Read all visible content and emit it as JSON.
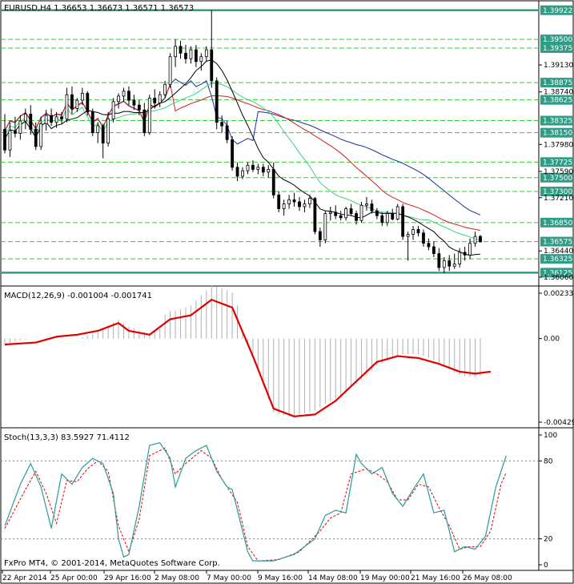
{
  "chart_data": [
    {
      "type": "candlestick",
      "title": "EURUSD,H4  1.36653  1.36673  1.36571  1.36573",
      "ylim": [
        1.35979,
        1.40035
      ],
      "y_ticks": [
        "1.39130",
        "1.38740",
        "1.37980",
        "1.37590",
        "1.37210",
        "1.36440",
        "1.36060"
      ],
      "level_labels": [
        "1.39922",
        "1.39500",
        "1.39375",
        "1.38875",
        "1.38625",
        "1.38325",
        "1.38150",
        "1.37725",
        "1.37500",
        "1.37300",
        "1.36850",
        "1.36575",
        "1.36325",
        "1.36125"
      ],
      "highlighted_levels": [
        "1.39922",
        "1.36125"
      ],
      "colors": {
        "ma_black": "#000000",
        "ma_green": "#3cd17c",
        "ma_red": "#d22020",
        "ma_blue": "#1c2fa6",
        "level_line": "#33cc33",
        "tag_bg": "#2f9c86"
      },
      "ohlc": [
        {
          "o": 1.382,
          "h": 1.3842,
          "l": 1.3785,
          "c": 1.379
        },
        {
          "o": 1.379,
          "h": 1.383,
          "l": 1.378,
          "c": 1.3818
        },
        {
          "o": 1.3818,
          "h": 1.3838,
          "l": 1.3808,
          "c": 1.3814
        },
        {
          "o": 1.3814,
          "h": 1.384,
          "l": 1.3805,
          "c": 1.3832
        },
        {
          "o": 1.3832,
          "h": 1.385,
          "l": 1.382,
          "c": 1.3842
        },
        {
          "o": 1.3842,
          "h": 1.3855,
          "l": 1.3812,
          "c": 1.382
        },
        {
          "o": 1.382,
          "h": 1.383,
          "l": 1.379,
          "c": 1.3795
        },
        {
          "o": 1.3795,
          "h": 1.3838,
          "l": 1.379,
          "c": 1.3828
        },
        {
          "o": 1.3828,
          "h": 1.3848,
          "l": 1.3818,
          "c": 1.384
        },
        {
          "o": 1.384,
          "h": 1.385,
          "l": 1.3825,
          "c": 1.383
        },
        {
          "o": 1.383,
          "h": 1.3845,
          "l": 1.3822,
          "c": 1.3838
        },
        {
          "o": 1.3838,
          "h": 1.3845,
          "l": 1.3828,
          "c": 1.3835
        },
        {
          "o": 1.3835,
          "h": 1.388,
          "l": 1.383,
          "c": 1.387
        },
        {
          "o": 1.387,
          "h": 1.3882,
          "l": 1.3842,
          "c": 1.385
        },
        {
          "o": 1.385,
          "h": 1.3865,
          "l": 1.3845,
          "c": 1.3862
        },
        {
          "o": 1.3862,
          "h": 1.388,
          "l": 1.3855,
          "c": 1.3872
        },
        {
          "o": 1.3872,
          "h": 1.3875,
          "l": 1.384,
          "c": 1.3845
        },
        {
          "o": 1.3845,
          "h": 1.385,
          "l": 1.381,
          "c": 1.3815
        },
        {
          "o": 1.3815,
          "h": 1.383,
          "l": 1.38,
          "c": 1.3825
        },
        {
          "o": 1.3825,
          "h": 1.3828,
          "l": 1.3778,
          "c": 1.38
        },
        {
          "o": 1.38,
          "h": 1.3845,
          "l": 1.3795,
          "c": 1.3835
        },
        {
          "o": 1.3835,
          "h": 1.3865,
          "l": 1.383,
          "c": 1.386
        },
        {
          "o": 1.386,
          "h": 1.3872,
          "l": 1.385,
          "c": 1.3868
        },
        {
          "o": 1.3868,
          "h": 1.388,
          "l": 1.386,
          "c": 1.3875
        },
        {
          "o": 1.3875,
          "h": 1.3882,
          "l": 1.3855,
          "c": 1.3862
        },
        {
          "o": 1.3862,
          "h": 1.387,
          "l": 1.3848,
          "c": 1.3855
        },
        {
          "o": 1.3855,
          "h": 1.3862,
          "l": 1.384,
          "c": 1.3848
        },
        {
          "o": 1.3848,
          "h": 1.3858,
          "l": 1.381,
          "c": 1.3815
        },
        {
          "o": 1.3815,
          "h": 1.387,
          "l": 1.3812,
          "c": 1.3865
        },
        {
          "o": 1.3865,
          "h": 1.3878,
          "l": 1.385,
          "c": 1.3858
        },
        {
          "o": 1.3858,
          "h": 1.3875,
          "l": 1.3852,
          "c": 1.387
        },
        {
          "o": 1.387,
          "h": 1.389,
          "l": 1.3865,
          "c": 1.3885
        },
        {
          "o": 1.3885,
          "h": 1.393,
          "l": 1.388,
          "c": 1.3925
        },
        {
          "o": 1.3925,
          "h": 1.395,
          "l": 1.391,
          "c": 1.394
        },
        {
          "o": 1.394,
          "h": 1.3948,
          "l": 1.3922,
          "c": 1.393
        },
        {
          "o": 1.393,
          "h": 1.3942,
          "l": 1.3915,
          "c": 1.3922
        },
        {
          "o": 1.3922,
          "h": 1.394,
          "l": 1.3915,
          "c": 1.3935
        },
        {
          "o": 1.3935,
          "h": 1.3942,
          "l": 1.391,
          "c": 1.3918
        },
        {
          "o": 1.3918,
          "h": 1.393,
          "l": 1.3905,
          "c": 1.3925
        },
        {
          "o": 1.3925,
          "h": 1.394,
          "l": 1.3918,
          "c": 1.3935
        },
        {
          "o": 1.3935,
          "h": 1.3992,
          "l": 1.388,
          "c": 1.389
        },
        {
          "o": 1.389,
          "h": 1.3895,
          "l": 1.382,
          "c": 1.383
        },
        {
          "o": 1.383,
          "h": 1.384,
          "l": 1.3815,
          "c": 1.3825
        },
        {
          "o": 1.3825,
          "h": 1.3832,
          "l": 1.38,
          "c": 1.3805
        },
        {
          "o": 1.3805,
          "h": 1.381,
          "l": 1.376,
          "c": 1.3765
        },
        {
          "o": 1.3765,
          "h": 1.3772,
          "l": 1.3745,
          "c": 1.3752
        },
        {
          "o": 1.3752,
          "h": 1.3765,
          "l": 1.3748,
          "c": 1.376
        },
        {
          "o": 1.376,
          "h": 1.3772,
          "l": 1.3755,
          "c": 1.3768
        },
        {
          "o": 1.3768,
          "h": 1.3775,
          "l": 1.3758,
          "c": 1.3762
        },
        {
          "o": 1.3762,
          "h": 1.377,
          "l": 1.3755,
          "c": 1.3765
        },
        {
          "o": 1.3765,
          "h": 1.377,
          "l": 1.3752,
          "c": 1.3758
        },
        {
          "o": 1.3758,
          "h": 1.3768,
          "l": 1.375,
          "c": 1.3762
        },
        {
          "o": 1.3762,
          "h": 1.3772,
          "l": 1.372,
          "c": 1.3725
        },
        {
          "o": 1.3725,
          "h": 1.373,
          "l": 1.37,
          "c": 1.3705
        },
        {
          "o": 1.3705,
          "h": 1.3718,
          "l": 1.3695,
          "c": 1.3712
        },
        {
          "o": 1.3712,
          "h": 1.3725,
          "l": 1.3705,
          "c": 1.3718
        },
        {
          "o": 1.3718,
          "h": 1.3728,
          "l": 1.3708,
          "c": 1.3715
        },
        {
          "o": 1.3715,
          "h": 1.3722,
          "l": 1.3702,
          "c": 1.3708
        },
        {
          "o": 1.3708,
          "h": 1.3718,
          "l": 1.37,
          "c": 1.3712
        },
        {
          "o": 1.3712,
          "h": 1.3725,
          "l": 1.3706,
          "c": 1.372
        },
        {
          "o": 1.372,
          "h": 1.3722,
          "l": 1.3668,
          "c": 1.3672
        },
        {
          "o": 1.3672,
          "h": 1.3678,
          "l": 1.365,
          "c": 1.366
        },
        {
          "o": 1.366,
          "h": 1.3702,
          "l": 1.3655,
          "c": 1.3698
        },
        {
          "o": 1.3698,
          "h": 1.3708,
          "l": 1.3688,
          "c": 1.37
        },
        {
          "o": 1.37,
          "h": 1.371,
          "l": 1.369,
          "c": 1.3695
        },
        {
          "o": 1.3695,
          "h": 1.3702,
          "l": 1.3688,
          "c": 1.3692
        },
        {
          "o": 1.3692,
          "h": 1.3708,
          "l": 1.3688,
          "c": 1.3705
        },
        {
          "o": 1.3705,
          "h": 1.3712,
          "l": 1.3695,
          "c": 1.3698
        },
        {
          "o": 1.3698,
          "h": 1.3702,
          "l": 1.3682,
          "c": 1.3688
        },
        {
          "o": 1.3688,
          "h": 1.3715,
          "l": 1.3685,
          "c": 1.371
        },
        {
          "o": 1.371,
          "h": 1.3722,
          "l": 1.3702,
          "c": 1.3712
        },
        {
          "o": 1.3712,
          "h": 1.3718,
          "l": 1.3698,
          "c": 1.3702
        },
        {
          "o": 1.3702,
          "h": 1.3706,
          "l": 1.369,
          "c": 1.3695
        },
        {
          "o": 1.3695,
          "h": 1.37,
          "l": 1.368,
          "c": 1.3685
        },
        {
          "o": 1.3685,
          "h": 1.3702,
          "l": 1.368,
          "c": 1.3698
        },
        {
          "o": 1.3698,
          "h": 1.3705,
          "l": 1.3688,
          "c": 1.369
        },
        {
          "o": 1.369,
          "h": 1.3712,
          "l": 1.3688,
          "c": 1.3708
        },
        {
          "o": 1.3708,
          "h": 1.3712,
          "l": 1.366,
          "c": 1.3665
        },
        {
          "o": 1.3665,
          "h": 1.3672,
          "l": 1.363,
          "c": 1.3668
        },
        {
          "o": 1.3668,
          "h": 1.368,
          "l": 1.366,
          "c": 1.3675
        },
        {
          "o": 1.3675,
          "h": 1.368,
          "l": 1.3665,
          "c": 1.367
        },
        {
          "o": 1.367,
          "h": 1.3675,
          "l": 1.365,
          "c": 1.3655
        },
        {
          "o": 1.3655,
          "h": 1.3662,
          "l": 1.3645,
          "c": 1.365
        },
        {
          "o": 1.365,
          "h": 1.3658,
          "l": 1.3635,
          "c": 1.364
        },
        {
          "o": 1.364,
          "h": 1.3648,
          "l": 1.3615,
          "c": 1.362
        },
        {
          "o": 1.362,
          "h": 1.3635,
          "l": 1.3612,
          "c": 1.363
        },
        {
          "o": 1.363,
          "h": 1.3638,
          "l": 1.3615,
          "c": 1.3622
        },
        {
          "o": 1.3622,
          "h": 1.364,
          "l": 1.3618,
          "c": 1.3625
        },
        {
          "o": 1.3625,
          "h": 1.3648,
          "l": 1.362,
          "c": 1.3642
        },
        {
          "o": 1.3642,
          "h": 1.365,
          "l": 1.363,
          "c": 1.3638
        },
        {
          "o": 1.3638,
          "h": 1.3662,
          "l": 1.3632,
          "c": 1.3655
        },
        {
          "o": 1.3655,
          "h": 1.3672,
          "l": 1.365,
          "c": 1.3665
        },
        {
          "o": 1.3665,
          "h": 1.3667,
          "l": 1.3657,
          "c": 1.3657
        }
      ],
      "x_labels": [
        "22 Apr 2014",
        "25 Apr 00:00",
        "29 Apr 16:00",
        "2 May 08:00",
        "7 May 00:00",
        "9 May 16:00",
        "14 May 08:00",
        "19 May 00:00",
        "21 May 16:00",
        "26 May 08:00"
      ]
    },
    {
      "type": "line",
      "title": "MACD(12,26,9) -0.001004 -0.001741",
      "ylim": [
        -0.004297,
        0.002335
      ],
      "y_ticks": [
        "0.002335",
        "0.00",
        "-0.004297"
      ],
      "signal": [
        [
          0,
          -0.0003
        ],
        [
          6,
          -0.0002
        ],
        [
          10,
          0.0001
        ],
        [
          14,
          0.0002
        ],
        [
          18,
          0.0004
        ],
        [
          22,
          0.0008
        ],
        [
          24,
          0.0004
        ],
        [
          28,
          0.0002
        ],
        [
          32,
          0.001
        ],
        [
          36,
          0.0012
        ],
        [
          40,
          0.002
        ],
        [
          44,
          0.0016
        ],
        [
          48,
          -0.0009
        ],
        [
          52,
          -0.0036
        ],
        [
          56,
          -0.004
        ],
        [
          60,
          -0.0039
        ],
        [
          64,
          -0.0032
        ],
        [
          68,
          -0.0022
        ],
        [
          72,
          -0.0012
        ],
        [
          76,
          -0.0009
        ],
        [
          80,
          -0.001
        ],
        [
          84,
          -0.0013
        ],
        [
          88,
          -0.0017
        ],
        [
          91,
          -0.0018
        ],
        [
          94,
          -0.0017
        ]
      ],
      "histogram_note": "gray bars"
    },
    {
      "type": "line",
      "title": "Stoch(13,3,3) 83.5927 71.4112",
      "ylim": [
        0,
        100
      ],
      "y_ticks": [
        "100",
        "80",
        "20",
        "0"
      ],
      "main": [
        [
          0,
          30
        ],
        [
          3,
          62
        ],
        [
          5,
          78
        ],
        [
          7,
          60
        ],
        [
          9,
          28
        ],
        [
          11,
          70
        ],
        [
          13,
          62
        ],
        [
          15,
          75
        ],
        [
          17,
          82
        ],
        [
          19,
          78
        ],
        [
          21,
          55
        ],
        [
          22,
          20
        ],
        [
          23,
          6
        ],
        [
          24,
          8
        ],
        [
          26,
          45
        ],
        [
          28,
          92
        ],
        [
          30,
          94
        ],
        [
          32,
          82
        ],
        [
          33,
          60
        ],
        [
          35,
          82
        ],
        [
          37,
          88
        ],
        [
          39,
          92
        ],
        [
          41,
          72
        ],
        [
          43,
          60
        ],
        [
          44,
          58
        ],
        [
          45,
          42
        ],
        [
          47,
          10
        ],
        [
          48,
          3
        ],
        [
          52,
          3
        ],
        [
          56,
          8
        ],
        [
          60,
          20
        ],
        [
          62,
          38
        ],
        [
          64,
          42
        ],
        [
          66,
          40
        ],
        [
          68,
          85
        ],
        [
          69,
          78
        ],
        [
          71,
          70
        ],
        [
          73,
          75
        ],
        [
          75,
          55
        ],
        [
          77,
          45
        ],
        [
          79,
          58
        ],
        [
          81,
          70
        ],
        [
          83,
          40
        ],
        [
          85,
          42
        ],
        [
          87,
          10
        ],
        [
          89,
          14
        ],
        [
          91,
          12
        ],
        [
          93,
          22
        ],
        [
          95,
          60
        ],
        [
          97,
          84
        ]
      ],
      "signal": [
        [
          0,
          28
        ],
        [
          4,
          58
        ],
        [
          6,
          72
        ],
        [
          8,
          55
        ],
        [
          10,
          32
        ],
        [
          12,
          65
        ],
        [
          14,
          64
        ],
        [
          16,
          74
        ],
        [
          18,
          80
        ],
        [
          20,
          72
        ],
        [
          22,
          30
        ],
        [
          24,
          10
        ],
        [
          26,
          35
        ],
        [
          28,
          84
        ],
        [
          31,
          90
        ],
        [
          33,
          70
        ],
        [
          35,
          78
        ],
        [
          38,
          88
        ],
        [
          40,
          82
        ],
        [
          42,
          66
        ],
        [
          45,
          48
        ],
        [
          47,
          14
        ],
        [
          49,
          3
        ],
        [
          53,
          4
        ],
        [
          57,
          10
        ],
        [
          61,
          26
        ],
        [
          63,
          36
        ],
        [
          65,
          40
        ],
        [
          67,
          70
        ],
        [
          70,
          74
        ],
        [
          72,
          70
        ],
        [
          74,
          64
        ],
        [
          76,
          50
        ],
        [
          78,
          50
        ],
        [
          80,
          62
        ],
        [
          82,
          60
        ],
        [
          84,
          44
        ],
        [
          86,
          30
        ],
        [
          88,
          12
        ],
        [
          90,
          14
        ],
        [
          92,
          14
        ],
        [
          94,
          26
        ],
        [
          96,
          62
        ],
        [
          97,
          71
        ]
      ],
      "levels": [
        80,
        20
      ]
    }
  ],
  "copyright": "FxPro MT4, © 2001-2014, MetaQuotes Software Corp."
}
